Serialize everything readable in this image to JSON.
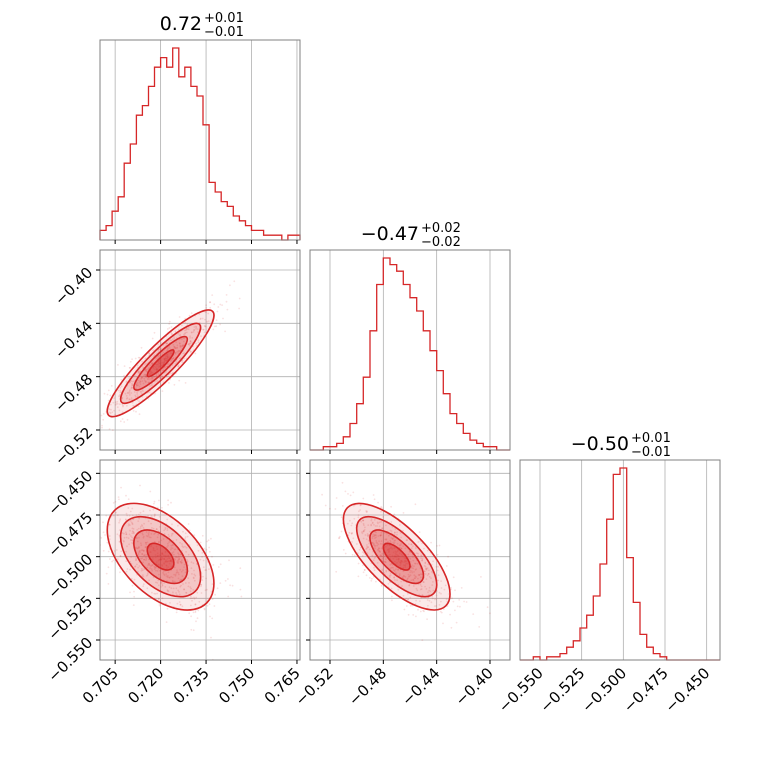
{
  "chart_data": {
    "type": "corner",
    "colors": {
      "series": "#d62728",
      "grid": "#b0b0b0",
      "frame": "#808080"
    },
    "grid": true,
    "parameters": [
      {
        "median": 0.72,
        "title_value": "0.72",
        "title_plus": "+0.01",
        "title_minus": "−0.01",
        "range": [
          0.7,
          0.766
        ],
        "ticks": [
          0.705,
          0.72,
          0.735,
          0.75,
          0.765
        ],
        "tick_labels": [
          "0.705",
          "0.720",
          "0.735",
          "0.750",
          "0.765"
        ]
      },
      {
        "median": -0.47,
        "title_value": "−0.47",
        "title_plus": "+0.02",
        "title_minus": "−0.02",
        "range": [
          -0.535,
          -0.385
        ],
        "ticks": [
          -0.52,
          -0.48,
          -0.44,
          -0.4
        ],
        "tick_labels": [
          "−0.52",
          "−0.48",
          "−0.44",
          "−0.40"
        ]
      },
      {
        "median": -0.5,
        "title_value": "−0.50",
        "title_plus": "+0.01",
        "title_minus": "−0.01",
        "range": [
          -0.562,
          -0.442
        ],
        "ticks": [
          -0.55,
          -0.525,
          -0.5,
          -0.475,
          -0.45
        ],
        "tick_labels": [
          "−0.550",
          "−0.525",
          "−0.500",
          "−0.475",
          "−0.450"
        ]
      }
    ],
    "histograms": [
      {
        "param": 0,
        "bin_edges": [
          0.7,
          0.702,
          0.704,
          0.706,
          0.708,
          0.71,
          0.712,
          0.714,
          0.716,
          0.718,
          0.72,
          0.722,
          0.724,
          0.726,
          0.728,
          0.73,
          0.732,
          0.734,
          0.736,
          0.738,
          0.74,
          0.742,
          0.744,
          0.746,
          0.748,
          0.75,
          0.752,
          0.754,
          0.756,
          0.758,
          0.76,
          0.762,
          0.764,
          0.766
        ],
        "counts": [
          2,
          3,
          6,
          9,
          16,
          20,
          26,
          28,
          32,
          36,
          38,
          36,
          40,
          34,
          36,
          32,
          30,
          24,
          12,
          10,
          8,
          7,
          5,
          4,
          3,
          2,
          2,
          1,
          1,
          1,
          0,
          1,
          1
        ]
      },
      {
        "param": 1,
        "bin_edges": [
          -0.535,
          -0.53,
          -0.525,
          -0.52,
          -0.515,
          -0.51,
          -0.505,
          -0.5,
          -0.495,
          -0.49,
          -0.485,
          -0.48,
          -0.475,
          -0.47,
          -0.465,
          -0.46,
          -0.455,
          -0.45,
          -0.445,
          -0.44,
          -0.435,
          -0.43,
          -0.425,
          -0.42,
          -0.415,
          -0.41,
          -0.405,
          -0.4,
          -0.395,
          -0.39,
          -0.385
        ],
        "counts": [
          0,
          0,
          1,
          1,
          2,
          4,
          8,
          14,
          22,
          36,
          50,
          58,
          56,
          54,
          50,
          46,
          42,
          36,
          30,
          24,
          17,
          11,
          8,
          5,
          3,
          2,
          1,
          1,
          0,
          0
        ]
      },
      {
        "param": 2,
        "bin_edges": [
          -0.562,
          -0.558,
          -0.554,
          -0.55,
          -0.546,
          -0.542,
          -0.538,
          -0.534,
          -0.53,
          -0.526,
          -0.522,
          -0.518,
          -0.514,
          -0.51,
          -0.506,
          -0.502,
          -0.498,
          -0.494,
          -0.49,
          -0.486,
          -0.482,
          -0.478,
          -0.474,
          -0.47,
          -0.466,
          -0.462,
          -0.458,
          -0.454,
          -0.45,
          -0.446,
          -0.442
        ],
        "counts": [
          0,
          0,
          1,
          0,
          1,
          1,
          2,
          4,
          6,
          10,
          14,
          20,
          30,
          44,
          58,
          60,
          32,
          18,
          8,
          4,
          2,
          1,
          0,
          0,
          0,
          0,
          0,
          0,
          0,
          0
        ]
      }
    ],
    "scatter_panels": [
      {
        "x_param": 0,
        "y_param": 1,
        "correlation": 0.9
      },
      {
        "x_param": 0,
        "y_param": 2,
        "correlation": -0.5
      },
      {
        "x_param": 1,
        "y_param": 2,
        "correlation": -0.7
      }
    ]
  }
}
